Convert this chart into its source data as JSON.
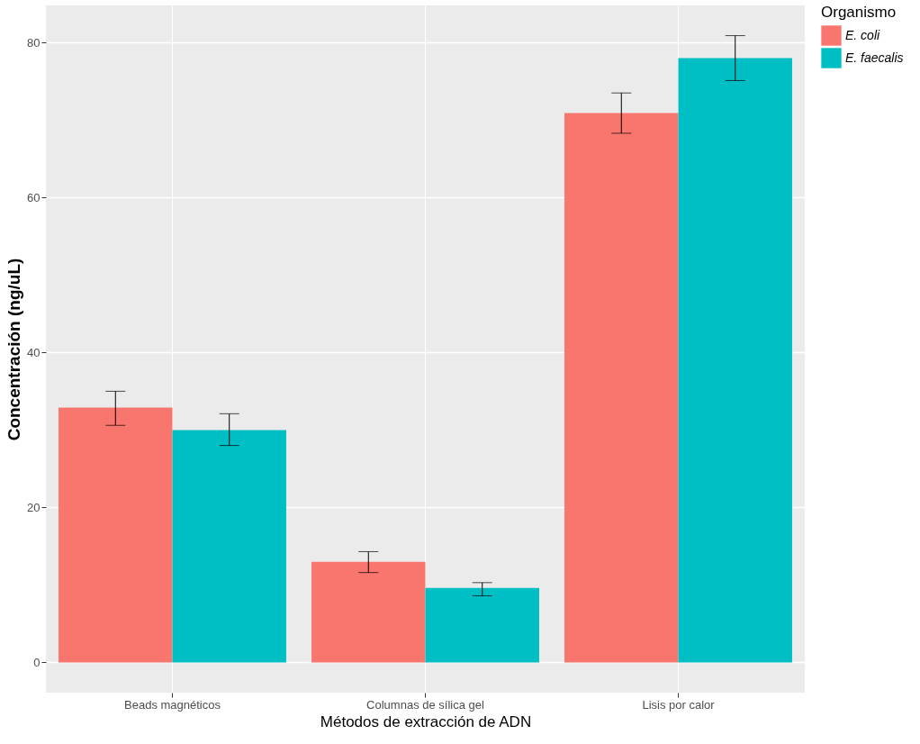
{
  "chart_data": {
    "type": "bar",
    "xlabel": "Métodos de extracción de ADN",
    "ylabel": "Concentración  (ng/uL)",
    "legend_title": "Organismo",
    "categories": [
      "Beads magnéticos",
      "Columnas de sílica gel",
      "Lisis por calor"
    ],
    "series": [
      {
        "name": "E. coli",
        "color": "#f8766d",
        "values": [
          32.9,
          13.0,
          70.9
        ],
        "errors": [
          [
            30.6,
            35.0
          ],
          [
            11.6,
            14.3
          ],
          [
            68.3,
            73.5
          ]
        ]
      },
      {
        "name": "E. faecalis",
        "color": "#00bfc4",
        "values": [
          30.0,
          9.6,
          78.0
        ],
        "errors": [
          [
            28.0,
            32.1
          ],
          [
            8.6,
            10.3
          ],
          [
            75.1,
            80.9
          ]
        ]
      }
    ],
    "ylim": [
      -3.9,
      84.8
    ],
    "yticks": [
      0,
      20,
      40,
      60,
      80
    ],
    "grid": true,
    "legend": "right"
  }
}
